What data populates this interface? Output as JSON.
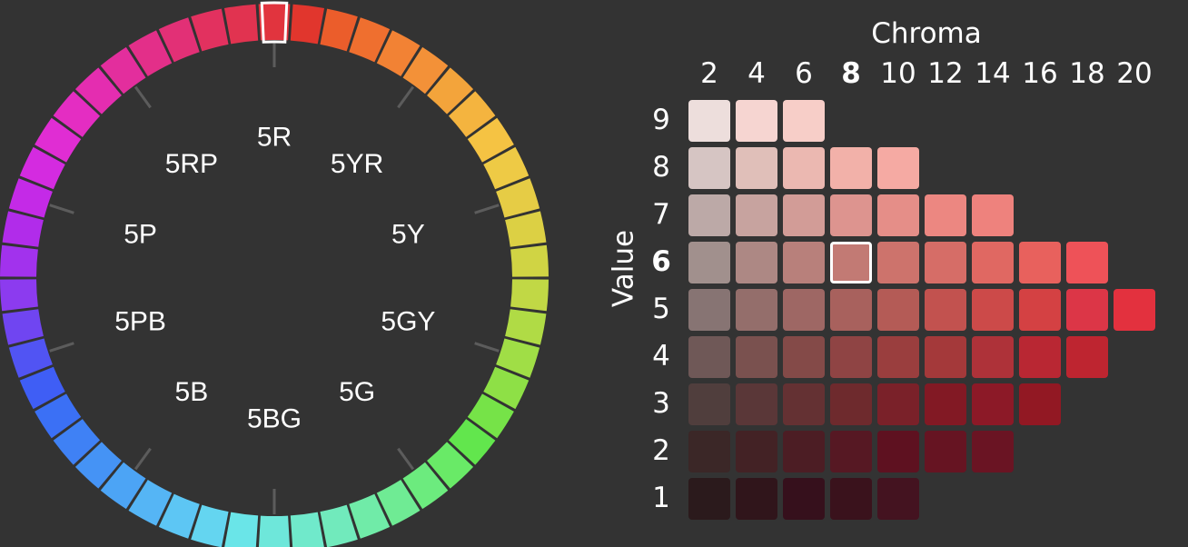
{
  "wheel": {
    "hue_labels": [
      "5R",
      "5YR",
      "5Y",
      "5GY",
      "5G",
      "5BG",
      "5B",
      "5PB",
      "5P",
      "5RP"
    ],
    "selected_hue": "5R",
    "segment_colors": [
      "#E1343E",
      "#E1362D",
      "#EB5D2B",
      "#EF6F2F",
      "#F28234",
      "#F39138",
      "#F3A43B",
      "#F4B43F",
      "#F5C343",
      "#EECA45",
      "#E6CC45",
      "#DCD044",
      "#D0D444",
      "#C1D845",
      "#B0DB45",
      "#A0DE46",
      "#8EE046",
      "#76E348",
      "#62E64D",
      "#69EA67",
      "#6CEB7E",
      "#6FEB94",
      "#70EBA8",
      "#71EABC",
      "#70E9CB",
      "#6EE7DA",
      "#6AE5E8",
      "#64D5F0",
      "#5DC6F4",
      "#55B5F5",
      "#4CA4F5",
      "#4593F5",
      "#3F81F5",
      "#3B70F5",
      "#3F5EF5",
      "#5154F3",
      "#7045F1",
      "#8C3BEF",
      "#A232ED",
      "#B12CEA",
      "#C42AE7",
      "#D42BE0",
      "#E02DD3",
      "#E42DC2",
      "#E42DB0",
      "#E32E9D",
      "#E32F89",
      "#E23076",
      "#E2315F",
      "#E13350"
    ]
  },
  "panel": {
    "chroma_title": "Chroma",
    "value_title": "Value",
    "chroma_ticks": [
      "2",
      "4",
      "6",
      "8",
      "10",
      "12",
      "14",
      "16",
      "18",
      "20"
    ],
    "value_ticks": [
      "9",
      "8",
      "7",
      "6",
      "5",
      "4",
      "3",
      "2",
      "1"
    ],
    "selected_chroma": "8",
    "selected_value": "6"
  },
  "chart_data": {
    "type": "heatmap",
    "title": "",
    "xlabel": "Chroma",
    "ylabel": "Value",
    "x": [
      2,
      4,
      6,
      8,
      10,
      12,
      14,
      16,
      18,
      20
    ],
    "y": [
      9,
      8,
      7,
      6,
      5,
      4,
      3,
      2,
      1
    ],
    "selected": {
      "hue": "5R",
      "value": 6,
      "chroma": 8
    },
    "rows": [
      {
        "value": 9,
        "colors": [
          "#EDDEDC",
          "#F6D5D1",
          "#F7CEC8"
        ]
      },
      {
        "value": 8,
        "colors": [
          "#D6C5C3",
          "#E0BFB9",
          "#EBB8B1",
          "#F2B1A9",
          "#F5AAA3"
        ]
      },
      {
        "value": 7,
        "colors": [
          "#BCA9A7",
          "#C7A39F",
          "#D29C97",
          "#DD948F",
          "#E58E88",
          "#EC8781",
          "#EE827D"
        ]
      },
      {
        "value": 6,
        "colors": [
          "#A1908D",
          "#AD8884",
          "#B8807B",
          "#C27A74",
          "#CD736C",
          "#D66D67",
          "#E06862",
          "#E8615D",
          "#EE5258"
        ]
      },
      {
        "value": 5,
        "colors": [
          "#877473",
          "#946E6B",
          "#9E6764",
          "#A8615D",
          "#B45B56",
          "#C2524F",
          "#CC4A49",
          "#D44143",
          "#DC3647",
          "#E3313E"
        ]
      },
      {
        "value": 4,
        "colors": [
          "#6F5857",
          "#7A514F",
          "#844A48",
          "#8F4444",
          "#9A3E3E",
          "#A4393A",
          "#AE3239",
          "#B92733",
          "#BE2530"
        ]
      },
      {
        "value": 3,
        "colors": [
          "#503E3D",
          "#5A3738",
          "#643133",
          "#6E2A2D",
          "#7A2129",
          "#821924",
          "#8C1927",
          "#921823"
        ]
      },
      {
        "value": 2,
        "colors": [
          "#3B2727",
          "#432225",
          "#4C1D24",
          "#561823",
          "#5E1120",
          "#661422",
          "#6A1423"
        ]
      },
      {
        "value": 1,
        "colors": [
          "#2B1A1C",
          "#30151B",
          "#36101C",
          "#3A121C",
          "#441320"
        ]
      }
    ]
  }
}
